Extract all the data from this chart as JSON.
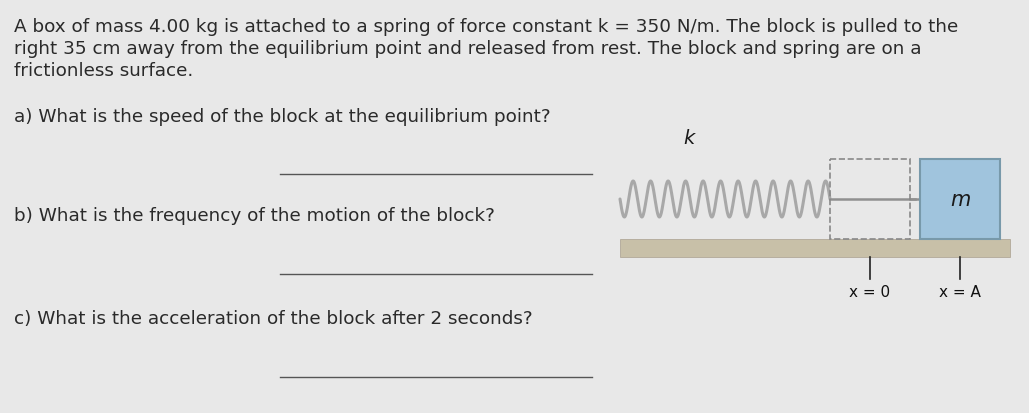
{
  "bg_color": "#e8e8e8",
  "text_color": "#2a2a2a",
  "title_text": "A box of mass 4.00 kg is attached to a spring of force constant k = 350 N/m. The block is pulled to the\nright 35 cm away from the equilibrium point and released from rest. The block and spring are on a\nfrictionless surface.",
  "question_a": "a) What is the speed of the block at the equilibrium point?",
  "question_b": "b) What is the frequency of the motion of the block?",
  "question_c": "c) What is the acceleration of the block after 2 seconds?",
  "font_size_main": 13.2,
  "font_size_questions": 13.2,
  "spring_color": "#a8a8a8",
  "block_color": "#a0c4dd",
  "block_edge_color": "#7899aa",
  "floor_color": "#c8c0a8",
  "floor_edge_color": "#aaa090",
  "dashed_box_color": "#888888",
  "line_color": "#555555",
  "tick_color": "#222222",
  "label_color": "#111111"
}
